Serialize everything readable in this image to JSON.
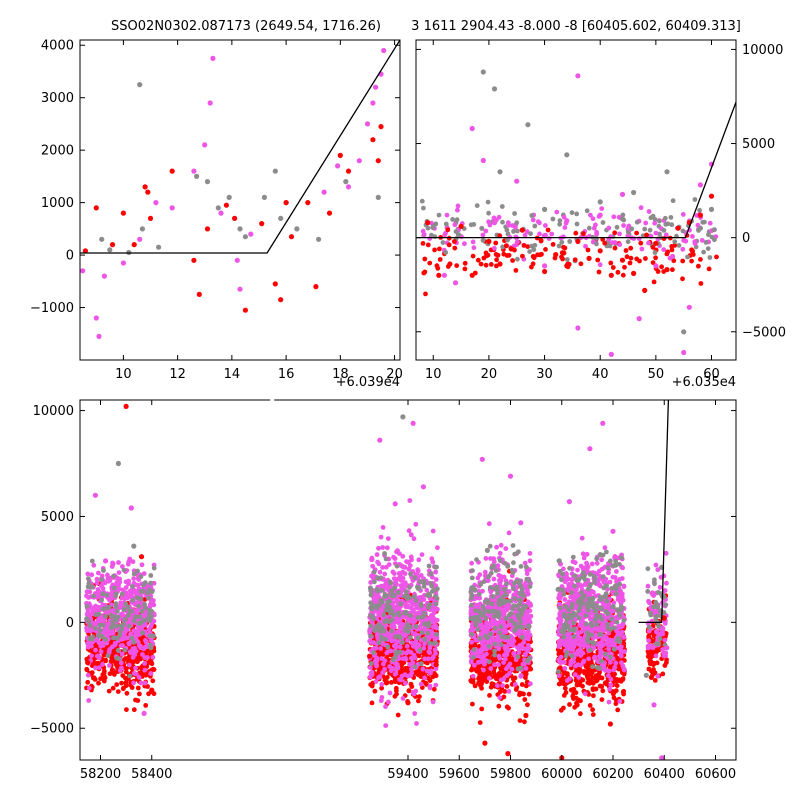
{
  "chart_data": [
    {
      "type": "scatter",
      "title": "SSO02N0302.087173 (2649.54, 1716.26)",
      "xlim": [
        8.4,
        20.2
      ],
      "ylim": [
        -2000,
        4100
      ],
      "x_offset_label": "+6.039e4",
      "x_ticks": [
        10,
        12,
        14,
        16,
        18,
        20
      ],
      "x_tick_labels": [
        "10",
        "12",
        "14",
        "16",
        "18",
        "20"
      ],
      "y_ticks": [
        -1000,
        0,
        1000,
        2000,
        3000,
        4000
      ],
      "y_tick_labels": [
        "−1000",
        "0",
        "1000",
        "2000",
        "3000",
        "4000"
      ],
      "y_axis_side": "left",
      "colors": {
        "gray": "#8c8c8c",
        "magenta": "#ee55e6",
        "red": "#ff0000",
        "line": "#000000"
      },
      "model_line": {
        "x": [
          8.4,
          15.3,
          20.2
        ],
        "y": [
          40,
          40,
          4100
        ]
      },
      "series": [
        {
          "color_key": "gray",
          "points": [
            [
              9.2,
              300
            ],
            [
              9.5,
              100
            ],
            [
              10.2,
              50
            ],
            [
              10.6,
              3250
            ],
            [
              10.7,
              500
            ],
            [
              11.3,
              150
            ],
            [
              12.7,
              1500
            ],
            [
              13.1,
              1400
            ],
            [
              13.5,
              900
            ],
            [
              13.9,
              1100
            ],
            [
              14.3,
              500
            ],
            [
              14.5,
              350
            ],
            [
              15.2,
              1100
            ],
            [
              15.6,
              1600
            ],
            [
              15.8,
              700
            ],
            [
              16.4,
              500
            ],
            [
              17.2,
              300
            ],
            [
              18.2,
              1400
            ],
            [
              19.4,
              1100
            ]
          ]
        },
        {
          "color_key": "magenta",
          "points": [
            [
              8.5,
              -300
            ],
            [
              9.0,
              -1200
            ],
            [
              9.1,
              -1550
            ],
            [
              9.3,
              -400
            ],
            [
              10.0,
              -150
            ],
            [
              10.6,
              300
            ],
            [
              11.2,
              1000
            ],
            [
              11.8,
              900
            ],
            [
              12.6,
              1600
            ],
            [
              13.0,
              2100
            ],
            [
              13.2,
              2900
            ],
            [
              13.3,
              3750
            ],
            [
              13.6,
              800
            ],
            [
              14.2,
              -100
            ],
            [
              14.3,
              -650
            ],
            [
              14.7,
              400
            ],
            [
              16.0,
              1000
            ],
            [
              17.4,
              1200
            ],
            [
              17.9,
              1700
            ],
            [
              18.3,
              1300
            ],
            [
              18.7,
              1800
            ],
            [
              19.0,
              2500
            ],
            [
              19.2,
              2900
            ],
            [
              19.3,
              3200
            ],
            [
              19.5,
              3450
            ],
            [
              19.6,
              3900
            ]
          ]
        },
        {
          "color_key": "red",
          "points": [
            [
              8.6,
              80
            ],
            [
              9.0,
              900
            ],
            [
              9.6,
              200
            ],
            [
              10.0,
              800
            ],
            [
              10.4,
              200
            ],
            [
              10.8,
              1300
            ],
            [
              10.9,
              1200
            ],
            [
              11.0,
              700
            ],
            [
              11.8,
              1600
            ],
            [
              12.6,
              -100
            ],
            [
              12.8,
              -750
            ],
            [
              13.1,
              500
            ],
            [
              13.8,
              950
            ],
            [
              14.1,
              700
            ],
            [
              14.5,
              -1050
            ],
            [
              15.1,
              600
            ],
            [
              15.6,
              -550
            ],
            [
              15.8,
              -850
            ],
            [
              16.0,
              1000
            ],
            [
              16.2,
              350
            ],
            [
              16.8,
              1000
            ],
            [
              17.1,
              -600
            ],
            [
              17.6,
              800
            ],
            [
              18.0,
              1900
            ],
            [
              18.3,
              1600
            ],
            [
              19.2,
              2200
            ],
            [
              19.4,
              1800
            ],
            [
              19.5,
              2450
            ]
          ]
        }
      ]
    },
    {
      "type": "scatter",
      "title": "3 1611 2904.43 -8.000 -8 [60405.602, 60409.313]",
      "xlim": [
        6.9,
        64.4
      ],
      "ylim": [
        -6500,
        10500
      ],
      "x_offset_label": "+6.035e4",
      "x_ticks": [
        10,
        20,
        30,
        40,
        50,
        60
      ],
      "x_tick_labels": [
        "10",
        "20",
        "30",
        "40",
        "50",
        "60"
      ],
      "y_ticks": [
        -5000,
        0,
        5000,
        10000
      ],
      "y_tick_labels": [
        "−5000",
        "0",
        "5000",
        "10000"
      ],
      "y_axis_side": "right",
      "colors": {
        "gray": "#8c8c8c",
        "magenta": "#ee55e6",
        "red": "#ff0000",
        "line": "#000000"
      },
      "model_line": {
        "x": [
          6.9,
          55.3,
          64.4
        ],
        "y": [
          0,
          0,
          7200
        ]
      },
      "series": [
        {
          "color_key": "gray",
          "points": [
            [
              19,
              8800
            ],
            [
              21,
              7900
            ],
            [
              22,
              3500
            ],
            [
              27,
              6000
            ],
            [
              30,
              1500
            ],
            [
              34,
              4400
            ],
            [
              40,
              1900
            ],
            [
              44,
              1000
            ],
            [
              46,
              2400
            ],
            [
              52,
              3500
            ],
            [
              55,
              -5000
            ],
            [
              58,
              500
            ],
            [
              60,
              1500
            ]
          ]
        },
        {
          "color_key": "magenta",
          "points": [
            [
              12,
              -2000
            ],
            [
              14,
              -2400
            ],
            [
              17,
              5800
            ],
            [
              19,
              4100
            ],
            [
              21,
              800
            ],
            [
              25,
              3000
            ],
            [
              30,
              -1500
            ],
            [
              34,
              900
            ],
            [
              36,
              8600
            ],
            [
              36,
              -4800
            ],
            [
              40,
              1200
            ],
            [
              42,
              -6200
            ],
            [
              44,
              2300
            ],
            [
              47,
              -4300
            ],
            [
              50,
              -1500
            ],
            [
              53,
              -1000
            ],
            [
              55,
              -6100
            ],
            [
              56,
              -3700
            ],
            [
              58,
              2800
            ],
            [
              60,
              3900
            ]
          ]
        },
        {
          "color_key": "red",
          "points": [
            [
              9,
              800
            ],
            [
              11,
              -2000
            ],
            [
              13,
              -1400
            ],
            [
              15,
              600
            ],
            [
              17,
              -2000
            ],
            [
              20,
              -200
            ],
            [
              22,
              -1400
            ],
            [
              24,
              -600
            ],
            [
              26,
              400
            ],
            [
              28,
              -1000
            ],
            [
              30,
              -1800
            ],
            [
              32,
              -900
            ],
            [
              34,
              -1500
            ],
            [
              36,
              -200
            ],
            [
              38,
              -1100
            ],
            [
              40,
              -700
            ],
            [
              42,
              -2000
            ],
            [
              44,
              -1200
            ],
            [
              46,
              -1900
            ],
            [
              48,
              -2800
            ],
            [
              50,
              -300
            ],
            [
              52,
              -1700
            ],
            [
              54,
              500
            ],
            [
              56,
              800
            ],
            [
              58,
              1200
            ],
            [
              60,
              2200
            ]
          ]
        }
      ]
    },
    {
      "type": "scatter",
      "title": "",
      "xlim": [
        58120,
        60680
      ],
      "ylim": [
        -6500,
        10500
      ],
      "x_offset_label": "",
      "x_ticks": [
        58200,
        58400,
        59400,
        59600,
        59800,
        60000,
        60200,
        60400,
        60600
      ],
      "x_tick_labels": [
        "58200",
        "58400",
        "59400",
        "59600",
        "59800",
        "60000",
        "60200",
        "60400",
        "60600"
      ],
      "x_break": [
        58490,
        59250
      ],
      "y_ticks": [
        -5000,
        0,
        5000,
        10000
      ],
      "y_tick_labels": [
        "−5000",
        "0",
        "5000",
        "10000"
      ],
      "y_axis_side": "left",
      "colors": {
        "gray": "#8c8c8c",
        "magenta": "#ee55e6",
        "red": "#ff0000",
        "line": "#000000"
      },
      "model_line": {
        "x": [
          60300,
          60390,
          60416
        ],
        "y": [
          0,
          0,
          10500
        ]
      },
      "series": [
        {
          "color_key": "gray",
          "points": [
            [
              58270,
              7500
            ],
            [
              58330,
              3600
            ],
            [
              59380,
              9700
            ],
            [
              59490,
              2300
            ],
            [
              59710,
              3400
            ],
            [
              59830,
              -2200
            ],
            [
              59990,
              2900
            ],
            [
              60150,
              3200
            ],
            [
              60210,
              2700
            ],
            [
              60330,
              -2500
            ],
            [
              60390,
              2600
            ]
          ]
        },
        {
          "color_key": "magenta",
          "points": [
            [
              58180,
              6000
            ],
            [
              58220,
              2900
            ],
            [
              58320,
              5400
            ],
            [
              58370,
              -4300
            ],
            [
              59290,
              8600
            ],
            [
              59350,
              5600
            ],
            [
              59420,
              9400
            ],
            [
              59460,
              6400
            ],
            [
              59690,
              7700
            ],
            [
              59800,
              6900
            ],
            [
              59840,
              4700
            ],
            [
              60030,
              5700
            ],
            [
              60110,
              8200
            ],
            [
              60160,
              9400
            ],
            [
              60200,
              4300
            ],
            [
              60360,
              -3900
            ],
            [
              60390,
              -6400
            ],
            [
              60410,
              -1200
            ]
          ]
        },
        {
          "color_key": "red",
          "points": [
            [
              58300,
              10200
            ],
            [
              58360,
              3100
            ],
            [
              58150,
              -1900
            ],
            [
              58400,
              -3200
            ],
            [
              59250,
              -1600
            ],
            [
              59400,
              -3800
            ],
            [
              59510,
              -2000
            ],
            [
              59700,
              -5700
            ],
            [
              59790,
              -6200
            ],
            [
              59860,
              -4400
            ],
            [
              60000,
              -6400
            ],
            [
              60060,
              -3900
            ],
            [
              60190,
              -4800
            ],
            [
              60350,
              -2600
            ],
            [
              60400,
              200
            ]
          ]
        }
      ],
      "clusters": [
        {
          "x_range": [
            58145,
            58410
          ],
          "y_center": -1300,
          "y_spread": 2200,
          "color_key": "red",
          "count": 520
        },
        {
          "x_range": [
            58145,
            58410
          ],
          "y_center": 200,
          "y_spread": 2600,
          "color_key": "magenta",
          "count": 520
        },
        {
          "x_range": [
            58145,
            58410
          ],
          "y_center": 500,
          "y_spread": 2300,
          "color_key": "gray",
          "count": 120
        },
        {
          "x_range": [
            59250,
            59515
          ],
          "y_center": -1400,
          "y_spread": 2200,
          "color_key": "red",
          "count": 600
        },
        {
          "x_range": [
            59250,
            59515
          ],
          "y_center": 300,
          "y_spread": 3400,
          "color_key": "magenta",
          "count": 700
        },
        {
          "x_range": [
            59250,
            59515
          ],
          "y_center": 600,
          "y_spread": 2600,
          "color_key": "gray",
          "count": 150
        },
        {
          "x_range": [
            59645,
            59880
          ],
          "y_center": -1500,
          "y_spread": 2300,
          "color_key": "red",
          "count": 550
        },
        {
          "x_range": [
            59645,
            59880
          ],
          "y_center": 200,
          "y_spread": 3000,
          "color_key": "magenta",
          "count": 600
        },
        {
          "x_range": [
            59645,
            59880
          ],
          "y_center": 600,
          "y_spread": 2600,
          "color_key": "gray",
          "count": 150
        },
        {
          "x_range": [
            59985,
            60245
          ],
          "y_center": -1500,
          "y_spread": 2300,
          "color_key": "red",
          "count": 580
        },
        {
          "x_range": [
            59985,
            60245
          ],
          "y_center": 200,
          "y_spread": 3000,
          "color_key": "magenta",
          "count": 650
        },
        {
          "x_range": [
            59985,
            60245
          ],
          "y_center": 700,
          "y_spread": 2600,
          "color_key": "gray",
          "count": 160
        },
        {
          "x_range": [
            60335,
            60410
          ],
          "y_center": -1000,
          "y_spread": 2000,
          "color_key": "red",
          "count": 80
        },
        {
          "x_range": [
            60335,
            60410
          ],
          "y_center": 200,
          "y_spread": 2600,
          "color_key": "magenta",
          "count": 70
        },
        {
          "x_range": [
            60335,
            60410
          ],
          "y_center": 400,
          "y_spread": 2000,
          "color_key": "gray",
          "count": 30
        }
      ]
    }
  ]
}
